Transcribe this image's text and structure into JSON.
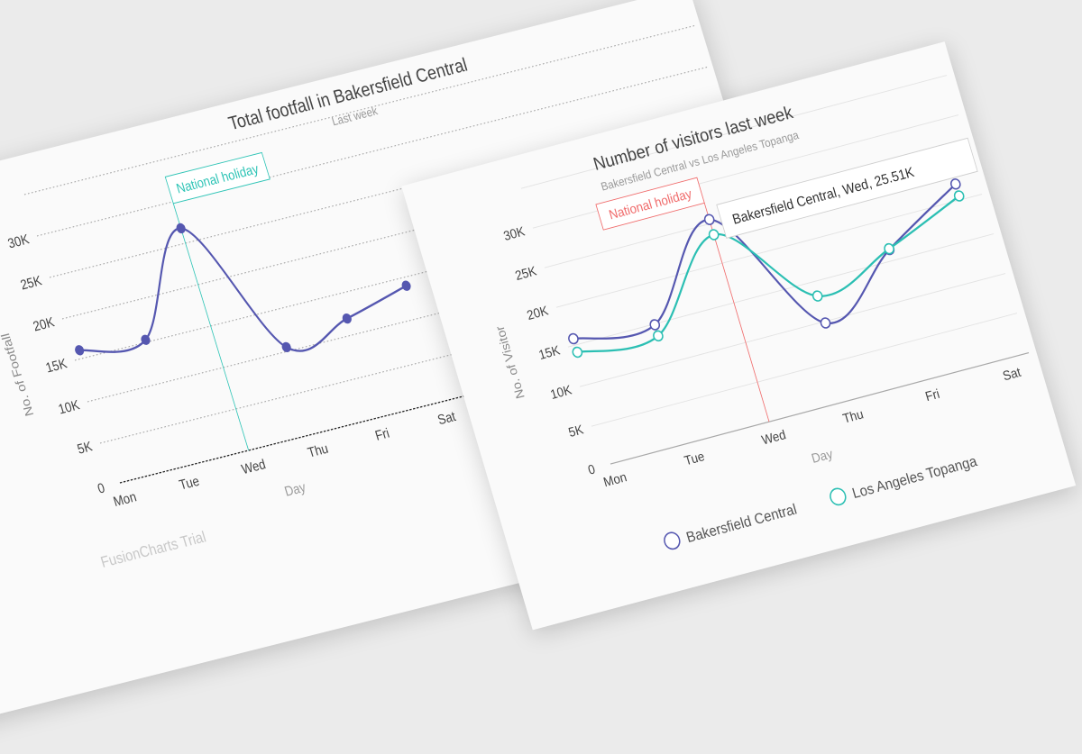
{
  "chart_data": [
    {
      "type": "line",
      "title": "Total footfall in Bakersfield Central",
      "subtitle": "Last week",
      "xlabel": "Day",
      "ylabel": "No. of Footfall",
      "categories": [
        "Mon",
        "Tue",
        "Wed",
        "Thu",
        "Fri",
        "Sat"
      ],
      "y_tick_values": [
        0,
        5,
        10,
        15,
        20,
        25,
        30
      ],
      "y_tick_labels": [
        "0",
        "5K",
        "10K",
        "15K",
        "20K",
        "25K",
        "30K"
      ],
      "ylim": [
        0,
        35
      ],
      "units": "thousands",
      "grid": true,
      "series": [
        {
          "name": "Bakersfield Central",
          "color": "#5557b0",
          "values": [
            16,
            15.3,
            26.8,
            10.5,
            12,
            14
          ]
        }
      ],
      "annotation": {
        "label": "National holiday",
        "category_index": 2,
        "color": "#2ec4b6"
      },
      "watermark": "FusionCharts Trial"
    },
    {
      "type": "line",
      "title": "Number of visitors last week",
      "subtitle": "Bakersfield Central vs Los Angeles Topanga",
      "xlabel": "Day",
      "ylabel": "No. of Visitor",
      "categories": [
        "Mon",
        "Tue",
        "Wed",
        "Thu",
        "Fri",
        "Sat"
      ],
      "y_tick_values": [
        0,
        5,
        10,
        15,
        20,
        25,
        30
      ],
      "y_tick_labels": [
        "0",
        "5K",
        "10K",
        "15K",
        "20K",
        "25K",
        "30K"
      ],
      "ylim": [
        0,
        35
      ],
      "units": "thousands",
      "grid": true,
      "series": [
        {
          "name": "Bakersfield Central",
          "color": "#5557b0",
          "values": [
            15.8,
            14.9,
            25.51,
            9.8,
            16.4,
            22
          ]
        },
        {
          "name": "Los Angeles Topanga",
          "color": "#2bbfb3",
          "values": [
            14.1,
            13.5,
            23.6,
            13.2,
            16.5,
            20.5
          ]
        }
      ],
      "annotation": {
        "label": "National holiday",
        "category_index": 2,
        "color": "#f06a6a"
      },
      "tooltip": "Bakersfield Central, Wed, 25.51K",
      "legend": [
        "Bakersfield Central",
        "Los Angeles Topanga"
      ],
      "legend_position": "bottom"
    }
  ]
}
